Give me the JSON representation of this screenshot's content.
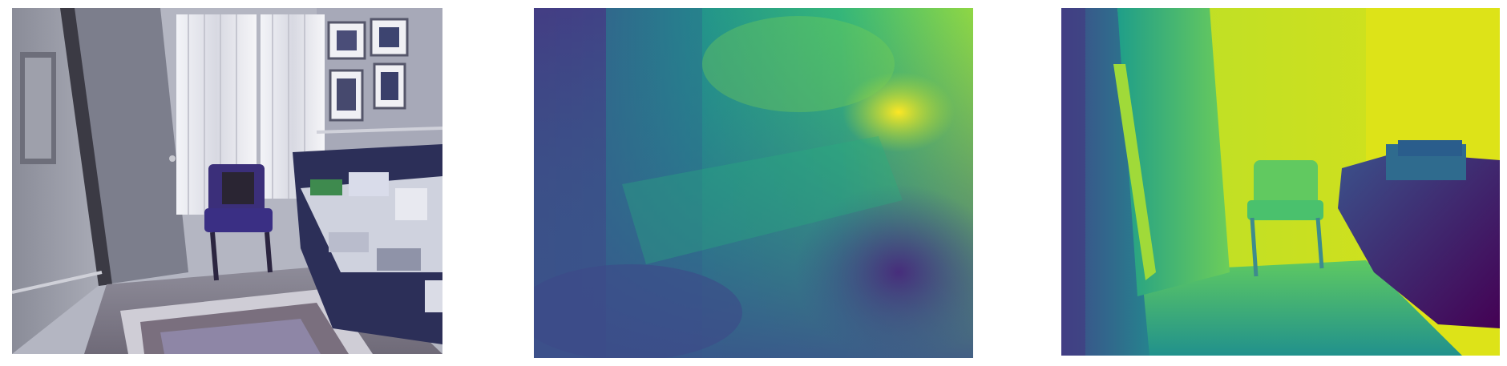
{
  "figure": {
    "panels": [
      {
        "id": "rgb",
        "content": "rgb-photo-office"
      },
      {
        "id": "pred",
        "content": "predicted-depth-map"
      },
      {
        "id": "gt",
        "content": "ground-truth-depth-map"
      }
    ],
    "colormap": {
      "near": "#440154",
      "mid_low": "#31688e",
      "mid": "#21918c",
      "mid_high": "#5ec962",
      "far": "#fde725"
    }
  }
}
